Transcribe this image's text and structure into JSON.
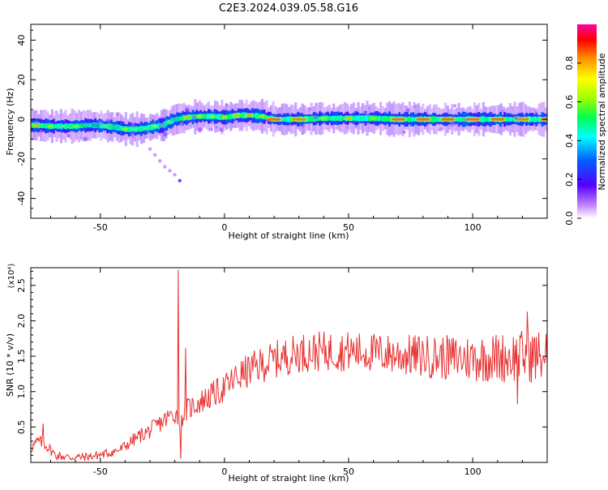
{
  "title": "C2E3.2024.039.05.58.G16",
  "chart_data": [
    {
      "type": "heatmap",
      "xlabel": "Height of straight line (km)",
      "ylabel": "Frequency (Hz)",
      "xlim": [
        -78,
        130
      ],
      "ylim": [
        -50,
        48
      ],
      "xticks": [
        -50,
        0,
        50,
        100
      ],
      "yticks": [
        -40,
        -20,
        0,
        20,
        40
      ],
      "colorbar": {
        "label": "Normalized spectral amplitude",
        "range": [
          0,
          1
        ],
        "ticks": [
          "0.0",
          "0.2",
          "0.4",
          "0.6",
          "0.8"
        ],
        "ticks_values": [
          0.0,
          0.2,
          0.4,
          0.6,
          0.8
        ]
      },
      "ridge": {
        "x": [
          -76,
          -70,
          -65,
          -60,
          -56,
          -52,
          -48,
          -44,
          -40,
          -36,
          -32,
          -28,
          -25,
          -22,
          -20,
          -15,
          -10,
          -5,
          0,
          5,
          10,
          15,
          20,
          30,
          40,
          50,
          60,
          70,
          80,
          90,
          100,
          110,
          120,
          130
        ],
        "freq": [
          -3,
          -3.5,
          -3.5,
          -3.5,
          -3,
          -3,
          -3.5,
          -4,
          -5,
          -5,
          -4.5,
          -3.5,
          -3,
          -1,
          0,
          1,
          1.5,
          1.5,
          1,
          2,
          2,
          1.5,
          0,
          0,
          0.5,
          0.5,
          0.5,
          0,
          0,
          0,
          0,
          0,
          0,
          0
        ],
        "amplitude": [
          0.8,
          0.7,
          0.6,
          0.7,
          0.55,
          0.5,
          0.6,
          0.55,
          0.7,
          0.6,
          0.6,
          0.65,
          0.55,
          0.6,
          0.55,
          0.8,
          0.75,
          0.7,
          0.75,
          0.8,
          0.85,
          0.75,
          0.95,
          0.9,
          0.75,
          0.8,
          0.75,
          0.95,
          0.95,
          0.95,
          0.95,
          0.95,
          0.9,
          0.95
        ]
      },
      "side_branch": {
        "x": [
          -30,
          -28,
          -26,
          -24,
          -22,
          -20,
          -18
        ],
        "freq": [
          -15,
          -18,
          -21,
          -24,
          -26,
          -28,
          -31
        ]
      }
    },
    {
      "type": "line",
      "xlabel": "Height of straight line (km)",
      "ylabel": "SNR (10 * v/v)",
      "y_multiplier": "(x10⁴)",
      "xlim": [
        -78,
        130
      ],
      "ylim": [
        0,
        2.75
      ],
      "xticks": [
        -50,
        0,
        50,
        100
      ],
      "yticks": [
        0.5,
        1.0,
        1.5,
        2.0,
        2.5
      ],
      "series_color": "#e83030",
      "trend": {
        "x": [
          -78,
          -75,
          -72,
          -68,
          -62,
          -55,
          -48,
          -42,
          -38,
          -34,
          -30,
          -26,
          -22,
          -20,
          -18,
          -15,
          -10,
          -5,
          0,
          5,
          10,
          15,
          20,
          25,
          30,
          40,
          50,
          60,
          70,
          80,
          90,
          100,
          110,
          120,
          130
        ],
        "y": [
          0.2,
          0.3,
          0.25,
          0.1,
          0.07,
          0.08,
          0.12,
          0.18,
          0.28,
          0.38,
          0.45,
          0.55,
          0.65,
          0.7,
          0.6,
          0.75,
          0.85,
          0.95,
          1.05,
          1.2,
          1.3,
          1.38,
          1.45,
          1.5,
          1.55,
          1.57,
          1.57,
          1.55,
          1.52,
          1.5,
          1.48,
          1.47,
          1.48,
          1.5,
          1.5
        ]
      },
      "spikes": [
        {
          "x": -18.5,
          "y": 2.72
        },
        {
          "x": -17.5,
          "y": 0.05
        },
        {
          "x": -15.5,
          "y": 1.62
        },
        {
          "x": -73,
          "y": 0.55
        },
        {
          "x": 122,
          "y": 2.13
        },
        {
          "x": 118,
          "y": 0.82
        }
      ]
    }
  ]
}
